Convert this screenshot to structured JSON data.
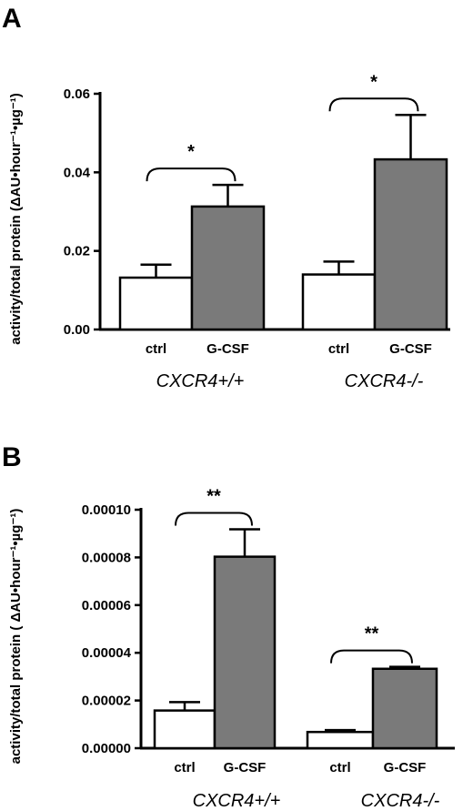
{
  "chart_data": [
    {
      "type": "bar",
      "panel": "A",
      "ylabel": "activity/total protein (ΔAU•hour⁻¹•µg⁻¹)",
      "ylim": [
        0,
        0.06
      ],
      "yticks": [
        "0.00",
        "0.02",
        "0.04",
        "0.06"
      ],
      "yticks_values": [
        0,
        0.02,
        0.04,
        0.06
      ],
      "groups": [
        {
          "name": "CXCR4+/+",
          "categories": [
            "ctrl",
            "G-CSF"
          ],
          "values": [
            0.0132,
            0.0313
          ],
          "errors": [
            0.0033,
            0.0055
          ],
          "significance": "*"
        },
        {
          "name": "CXCR4-/-",
          "categories": [
            "ctrl",
            "G-CSF"
          ],
          "values": [
            0.014,
            0.0433
          ],
          "errors": [
            0.0033,
            0.0113
          ],
          "significance": "*"
        }
      ],
      "colors": {
        "ctrl": "#ffffff",
        "G-CSF": "#7a7a7a"
      }
    },
    {
      "type": "bar",
      "panel": "B",
      "ylabel": "activity/total protein ( ΔAU•hour⁻¹•µg⁻¹)",
      "ylim": [
        0,
        0.0001
      ],
      "yticks": [
        "0.00000",
        "0.00002",
        "0.00004",
        "0.00006",
        "0.00008",
        "0.00010"
      ],
      "yticks_values": [
        0,
        2e-05,
        4e-05,
        6e-05,
        8e-05,
        0.0001
      ],
      "groups": [
        {
          "name": "CXCR4+/+",
          "categories": [
            "ctrl",
            "G-CSF"
          ],
          "values": [
            1.58e-05,
            8.03e-05
          ],
          "errors": [
            3.5e-06,
            1.15e-05
          ],
          "significance": "**"
        },
        {
          "name": "CXCR4-/-",
          "categories": [
            "ctrl",
            "G-CSF"
          ],
          "values": [
            6.8e-06,
            3.33e-05
          ],
          "errors": [
            8e-07,
            8e-07
          ],
          "significance": "**"
        }
      ],
      "colors": {
        "ctrl": "#ffffff",
        "G-CSF": "#7a7a7a"
      }
    }
  ]
}
